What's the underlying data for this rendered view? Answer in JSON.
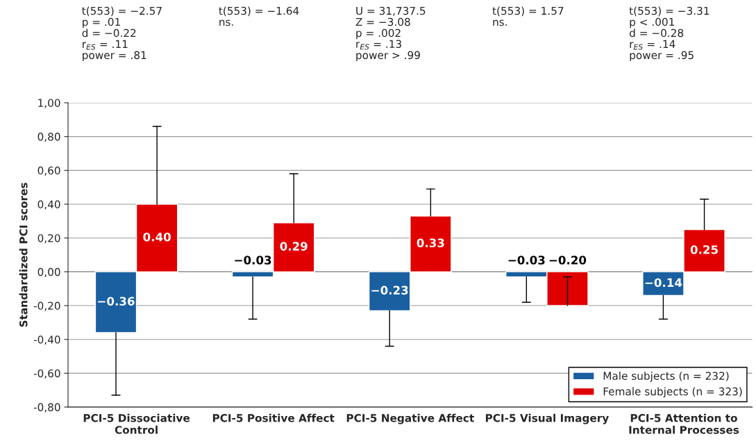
{
  "chart_data": {
    "type": "bar",
    "ylabel": "Standardized PCI scores",
    "categories": [
      "PCI-5 Dissociative\nControl",
      "PCI-5 Positive Affect",
      "PCI-5 Negative Affect",
      "PCI-5 Visual Imagery",
      "PCI-5 Attention to\nInternal Processes"
    ],
    "series": [
      {
        "name": "Male subjects (n = 232)",
        "color": "#1a5fa0",
        "values": [
          -0.36,
          -0.03,
          -0.23,
          -0.03,
          -0.14
        ],
        "value_labels": [
          "−0.36",
          "−0.03",
          "−0.23",
          "−0.03",
          "−0.14"
        ],
        "errors": [
          [
            -0.73,
            -0.36
          ],
          [
            -0.28,
            -0.03
          ],
          [
            -0.44,
            -0.23
          ],
          [
            -0.18,
            -0.03
          ],
          [
            -0.28,
            -0.14
          ]
        ]
      },
      {
        "name": "Female subjects (n = 323)",
        "color": "#e00000",
        "values": [
          0.4,
          0.29,
          0.33,
          -0.2,
          0.25
        ],
        "value_labels": [
          "0.40",
          "0.29",
          "0.33",
          "−0.20",
          "0.25"
        ],
        "errors": [
          [
            0.4,
            0.86
          ],
          [
            0.29,
            0.58
          ],
          [
            0.33,
            0.49
          ],
          [
            -0.2,
            -0.03
          ],
          [
            0.25,
            0.43
          ]
        ]
      }
    ],
    "ylim": [
      -0.8,
      1.0
    ],
    "yticks": [
      {
        "value": -0.8,
        "label": "-0,80"
      },
      {
        "value": -0.6,
        "label": "-0,60"
      },
      {
        "value": -0.4,
        "label": "-0,40"
      },
      {
        "value": -0.2,
        "label": "-0,20"
      },
      {
        "value": 0,
        "label": "0,00"
      },
      {
        "value": 0.2,
        "label": "0,20"
      },
      {
        "value": 0.4,
        "label": "0,40"
      },
      {
        "value": 0.6,
        "label": "0,60"
      },
      {
        "value": 0.8,
        "label": "0,80"
      },
      {
        "value": 1.0,
        "label": "1,00"
      }
    ],
    "grid": "y",
    "legend": "bottom right",
    "annotations": [
      "t(553) = −2.57\np = .01\nd = −0.22\nr$_{ES}$ = .11\npower = .81",
      "t(553) = −1.64\nns.",
      "U = 31,737.5\nZ = −3.08\np = .002\nr$_{ES}$ = .13\npower > .99",
      "t(553) = 1.57\nns.",
      "t(553) = −3.31\np < .001\nd = −0.28\nr$_{ES}$ = .14\npower = .95"
    ]
  }
}
